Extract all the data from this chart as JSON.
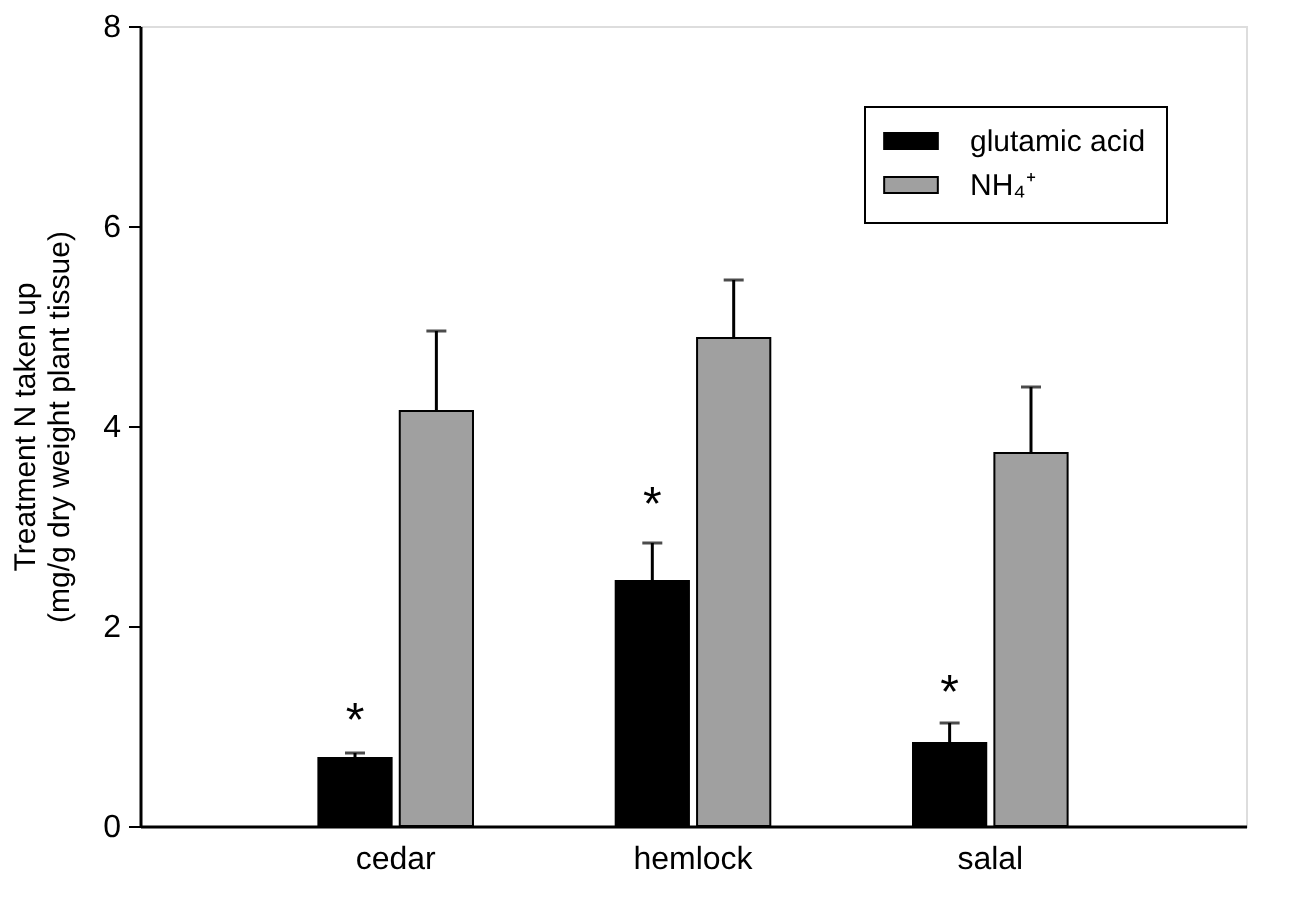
{
  "chart_data": {
    "type": "bar",
    "ylabel": "Treatment N taken up\n(mg/g dry weight plant tissue)",
    "categories": [
      "cedar",
      "hemlock",
      "salal"
    ],
    "series": [
      {
        "name": "glutamic acid",
        "color": "#000000",
        "values": [
          0.68,
          2.45,
          0.83
        ],
        "errors": [
          0.05,
          0.38,
          0.2
        ]
      },
      {
        "name": "NH₄⁺",
        "color": "#a0a0a0",
        "values": [
          4.15,
          4.88,
          3.73
        ],
        "errors": [
          0.8,
          0.58,
          0.66
        ]
      }
    ],
    "ylim": [
      0,
      8
    ],
    "yticks": [
      0,
      2,
      4,
      6,
      8
    ],
    "grid": false,
    "legend": "top right",
    "annotations": [
      {
        "text": "*",
        "x": "cedar",
        "y": 1.14
      },
      {
        "text": "*",
        "x": "hemlock",
        "y": 3.3
      },
      {
        "text": "*",
        "x": "salal",
        "y": 1.42
      }
    ]
  }
}
